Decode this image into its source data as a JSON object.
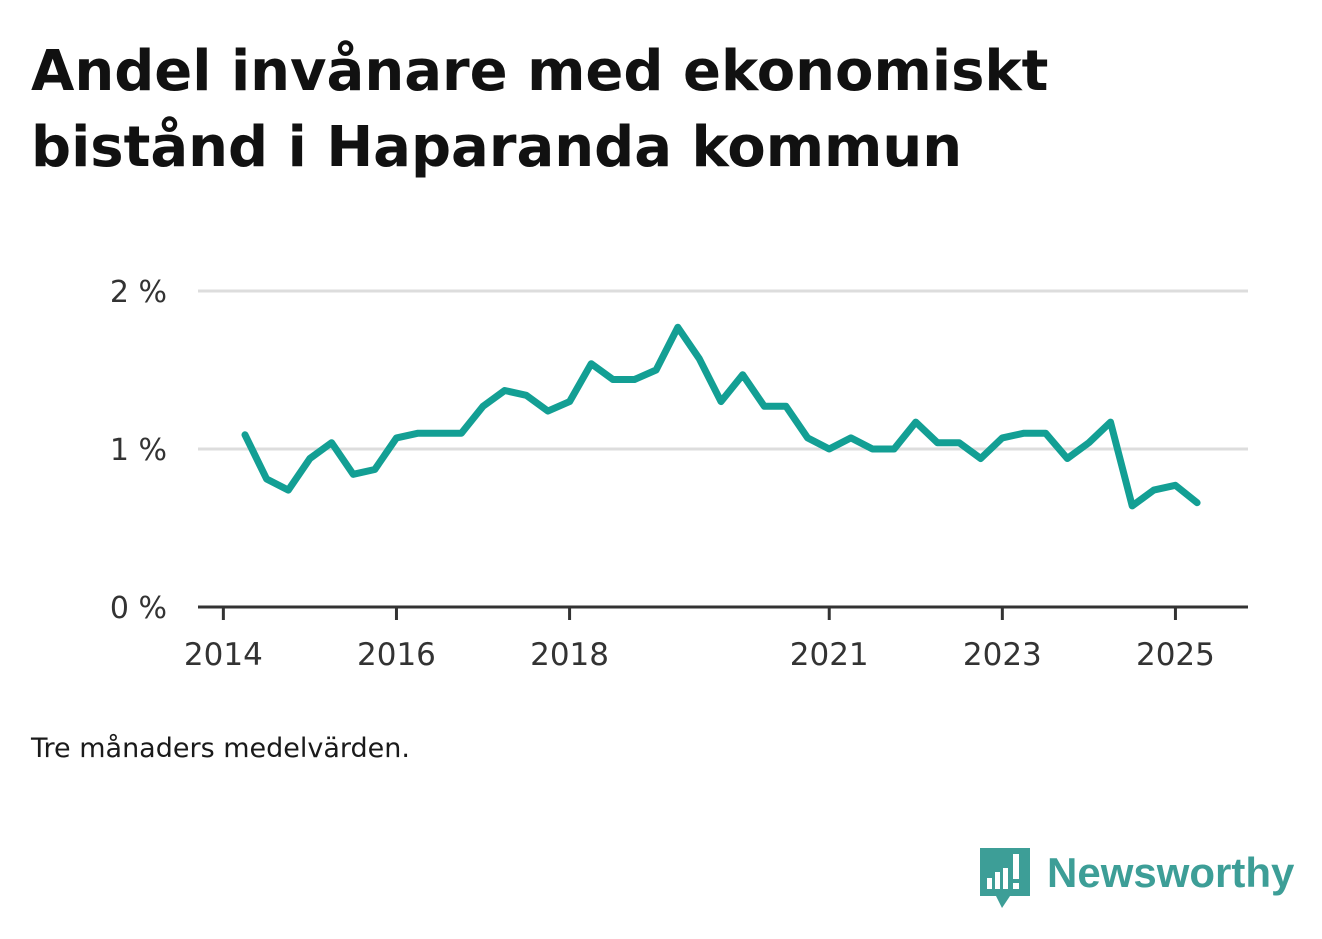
{
  "title": "Andel invånare med ekonomiskt bistånd i Haparanda kommun",
  "note": "Tre månaders medelvärden.",
  "brand": {
    "name": "Newsworthy",
    "icon": "newsworthy-logo-icon",
    "color": "#3d9e97"
  },
  "colors": {
    "line": "#139f94",
    "grid": "#dddddd",
    "axis": "#333333",
    "text": "#333333"
  },
  "chart_data": {
    "type": "line",
    "title": "Andel invånare med ekonomiskt bistånd i Haparanda kommun",
    "xlabel": "",
    "ylabel": "",
    "y_unit": "%",
    "ylim": [
      0,
      2
    ],
    "y_ticks": [
      {
        "value": 0,
        "label": "0 %"
      },
      {
        "value": 1,
        "label": "1 %"
      },
      {
        "value": 2,
        "label": "2 %"
      }
    ],
    "x_ticks": [
      "2014",
      "2016",
      "2018",
      "2021",
      "2023",
      "2025"
    ],
    "grid": true,
    "legend": "none",
    "series": [
      {
        "color": "#139f94",
        "x": [
          "2014-04",
          "2014-07",
          "2014-10",
          "2015-01",
          "2015-04",
          "2015-07",
          "2015-10",
          "2016-01",
          "2016-04",
          "2016-07",
          "2016-10",
          "2017-01",
          "2017-04",
          "2017-07",
          "2017-10",
          "2018-01",
          "2018-04",
          "2018-07",
          "2018-10",
          "2019-01",
          "2019-04",
          "2019-07",
          "2019-10",
          "2020-01",
          "2020-04",
          "2020-07",
          "2020-10",
          "2021-01",
          "2021-04",
          "2021-07",
          "2021-10",
          "2022-01",
          "2022-04",
          "2022-07",
          "2022-10",
          "2023-01",
          "2023-04",
          "2023-07",
          "2023-10",
          "2024-01",
          "2024-04",
          "2024-07",
          "2024-10",
          "2025-01",
          "2025-04"
        ],
        "y": [
          1.09,
          0.81,
          0.74,
          0.94,
          1.04,
          0.84,
          0.87,
          1.07,
          1.1,
          1.1,
          1.1,
          1.27,
          1.37,
          1.34,
          1.24,
          1.3,
          1.54,
          1.44,
          1.44,
          1.5,
          1.77,
          1.57,
          1.3,
          1.47,
          1.27,
          1.27,
          1.07,
          1.0,
          1.07,
          1.0,
          1.0,
          1.17,
          1.04,
          1.04,
          0.94,
          1.07,
          1.1,
          1.1,
          0.94,
          1.04,
          1.17,
          0.64,
          0.74,
          0.77,
          0.66
        ]
      }
    ]
  }
}
